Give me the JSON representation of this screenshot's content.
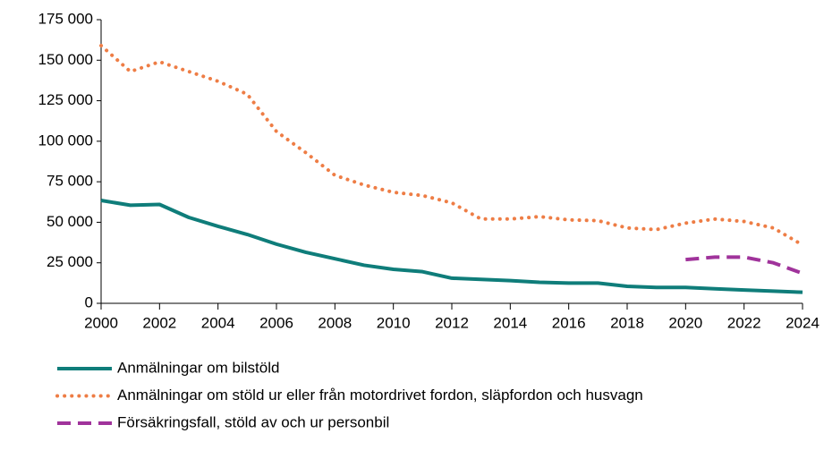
{
  "chart_data": {
    "type": "line",
    "x": [
      2000,
      2001,
      2002,
      2003,
      2004,
      2005,
      2006,
      2007,
      2008,
      2009,
      2010,
      2011,
      2012,
      2013,
      2014,
      2015,
      2016,
      2017,
      2018,
      2019,
      2020,
      2021,
      2022,
      2023,
      2024
    ],
    "xlim": [
      2000,
      2024
    ],
    "xticks": [
      2000,
      2002,
      2004,
      2006,
      2008,
      2010,
      2012,
      2014,
      2016,
      2018,
      2020,
      2022,
      2024
    ],
    "ylim": [
      0,
      175000
    ],
    "yticks": [
      0,
      {
        "value": 25000,
        "label": "25 000"
      },
      {
        "value": 50000,
        "label": "50 000"
      },
      {
        "value": 75000,
        "label": "75 000"
      },
      {
        "value": 100000,
        "label": "100 000"
      },
      {
        "value": 125000,
        "label": "125 000"
      },
      {
        "value": 150000,
        "label": "150 000"
      },
      {
        "value": 175000,
        "label": "175 000"
      }
    ],
    "legend": "bottom",
    "series": [
      {
        "name": "Anmälningar om bilstöld",
        "color": "#0f7d7a",
        "style": "solid",
        "values": [
          63500,
          60500,
          61000,
          53000,
          47500,
          42500,
          36500,
          31500,
          27500,
          23500,
          21000,
          19500,
          15500,
          14800,
          14000,
          13000,
          12500,
          12500,
          10500,
          9800,
          9800,
          9000,
          8200,
          7500,
          6800
        ]
      },
      {
        "name": "Anmälningar om stöld ur eller från motordrivet fordon, släpfordon och husvagn",
        "color": "#ee7d45",
        "style": "dotted",
        "values": [
          159000,
          143000,
          149000,
          143000,
          137000,
          129000,
          106000,
          93000,
          79000,
          73000,
          68500,
          66500,
          62000,
          52000,
          52000,
          53500,
          51500,
          51000,
          46500,
          45500,
          49500,
          52000,
          50500,
          46500,
          36000
        ]
      },
      {
        "name": "Försäkringsfall, stöld av och ur personbil",
        "color": "#a0339b",
        "style": "dashed",
        "values": [
          null,
          null,
          null,
          null,
          null,
          null,
          null,
          null,
          null,
          null,
          null,
          null,
          null,
          null,
          null,
          null,
          null,
          null,
          null,
          null,
          27000,
          28500,
          28500,
          25000,
          18500
        ]
      }
    ]
  }
}
